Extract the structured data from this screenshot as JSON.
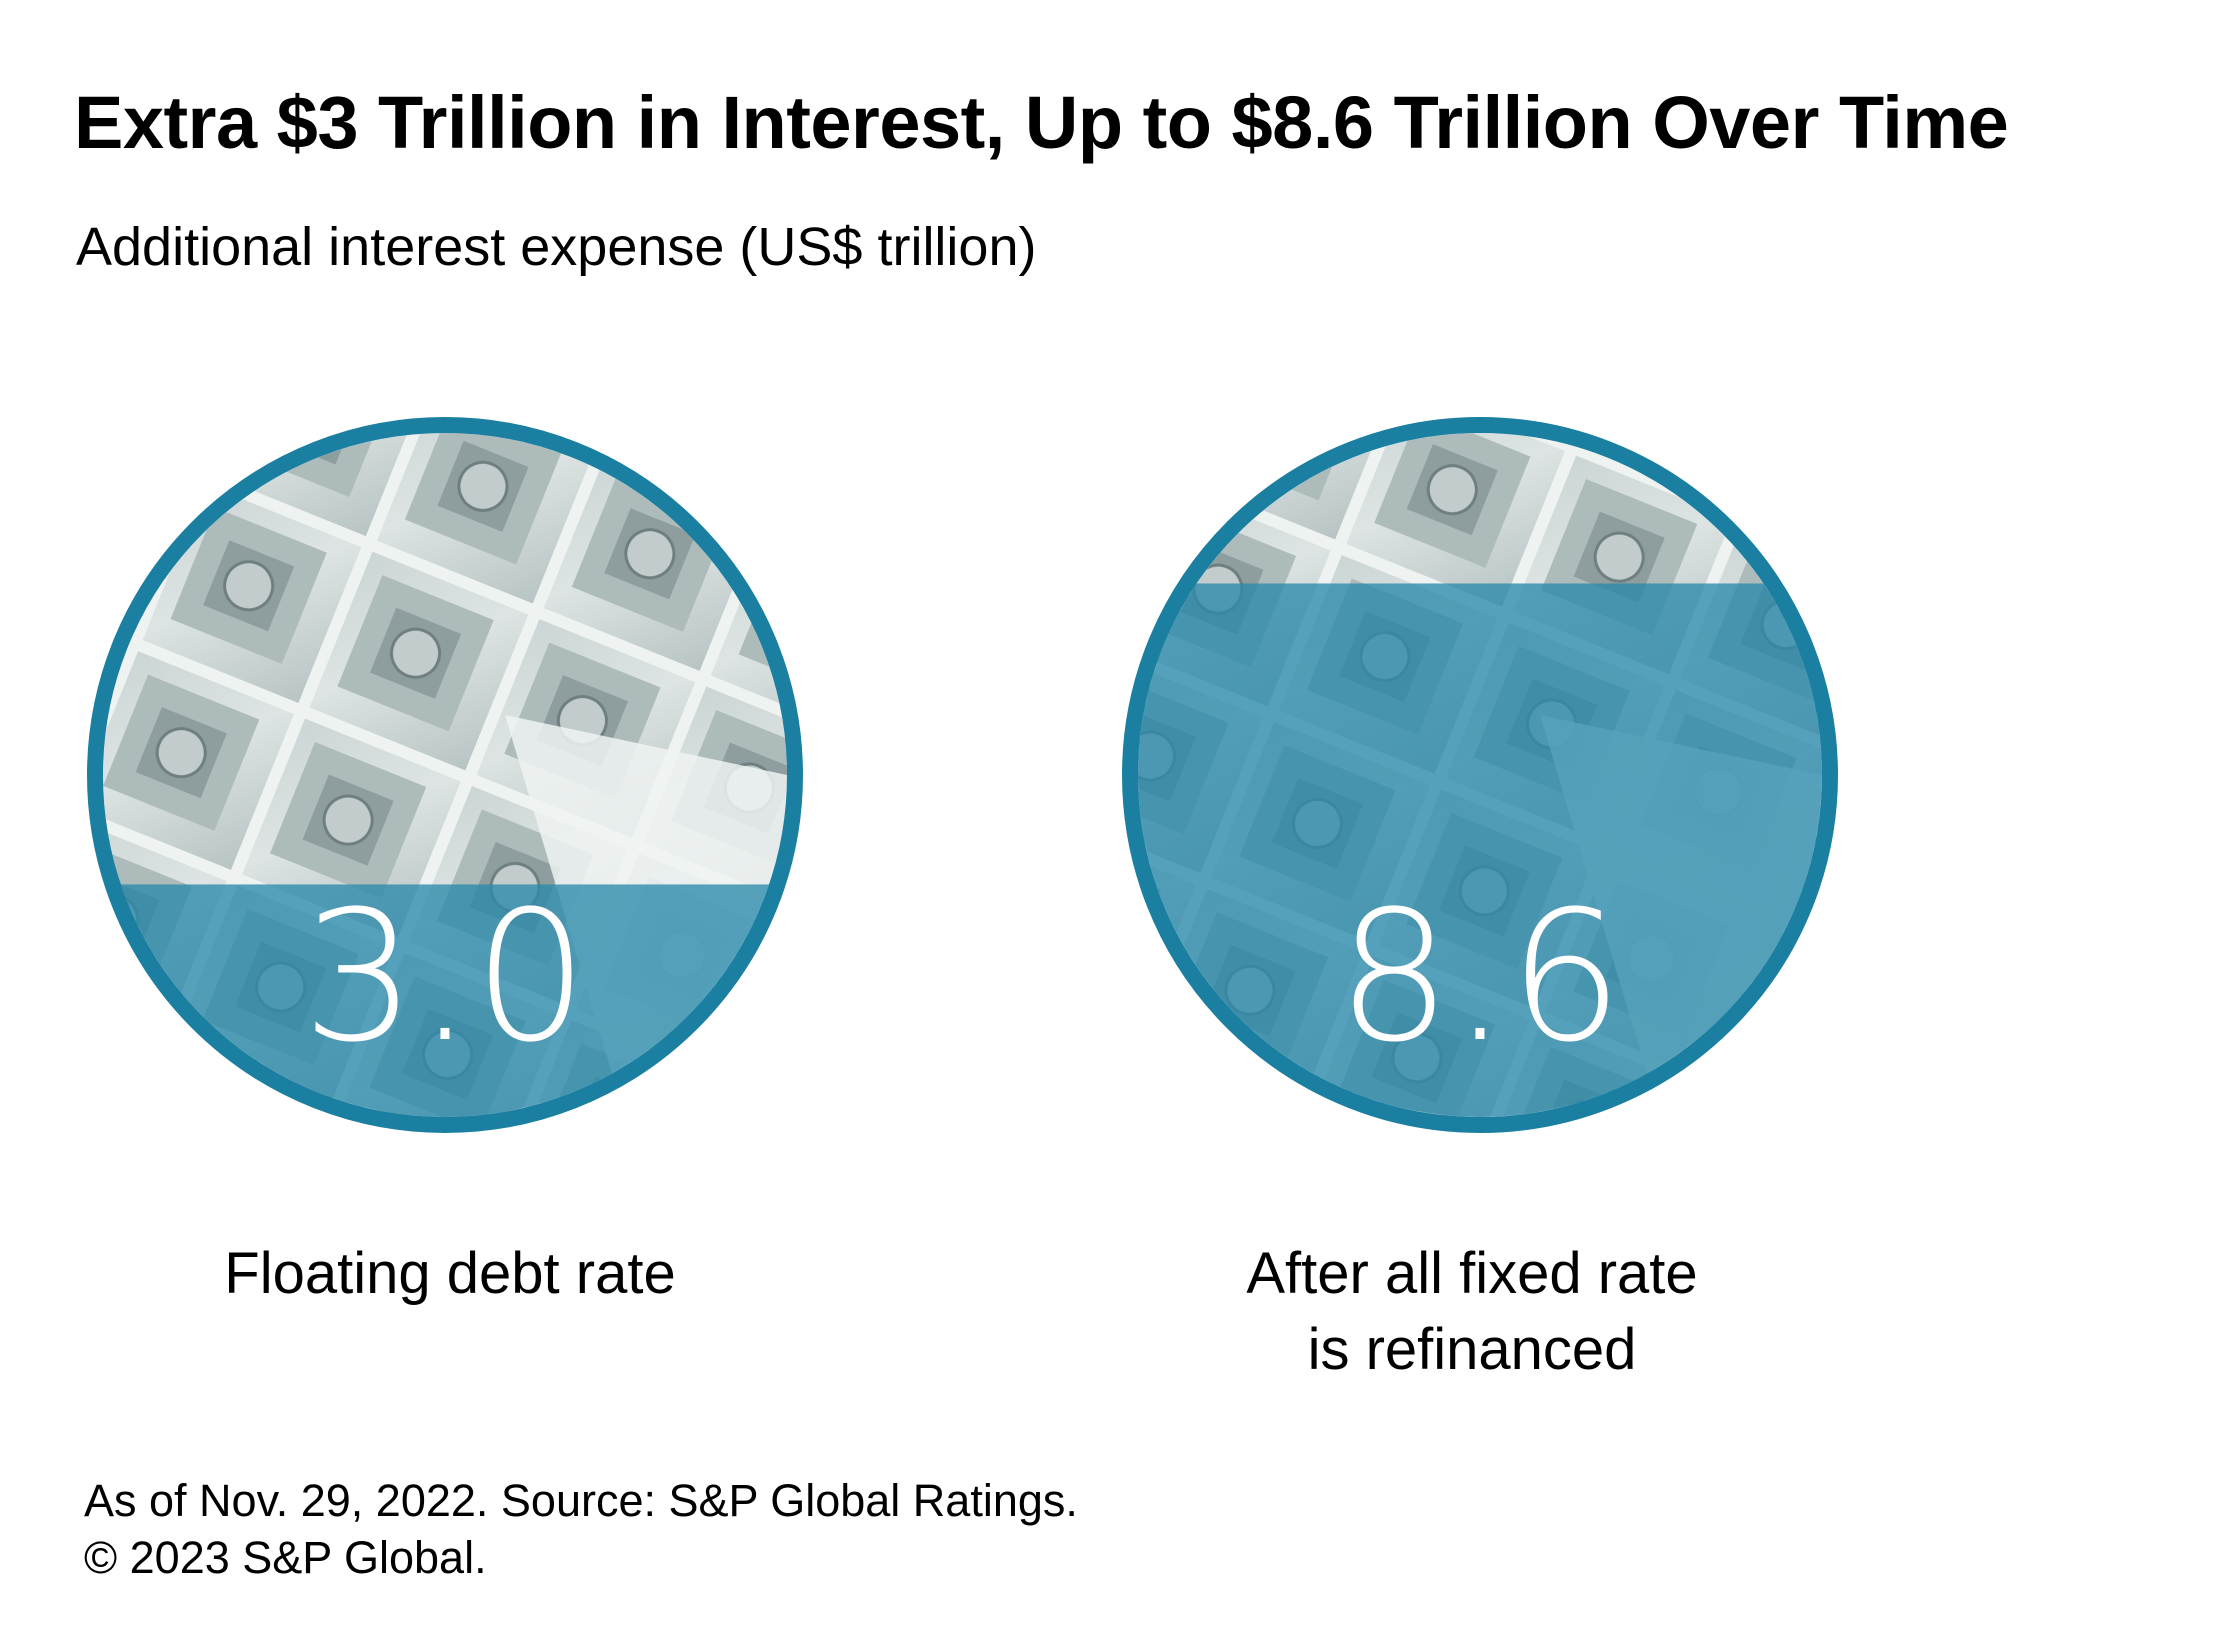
{
  "title": "Extra $3 Trillion in Interest, Up to $8.6 Trillion Over Time",
  "subtitle": "Additional interest expense (US$ trillion)",
  "colors": {
    "ring": "#1a7fa0",
    "fill": "#2a89ab",
    "text_on_fill": "#ffffff"
  },
  "chart_data": {
    "type": "bar",
    "subtype": "circle-fill",
    "categories": [
      "Floating debt rate",
      "After all fixed rate is refinanced"
    ],
    "values": [
      3.0,
      8.6
    ],
    "value_labels": [
      "3.0",
      "8.6"
    ],
    "fill_fraction": [
      0.34,
      0.78
    ],
    "title": "Extra $3 Trillion in Interest, Up to $8.6 Trillion Over Time",
    "ylabel": "Additional interest expense (US$ trillion)"
  },
  "labels": {
    "left": [
      "Floating debt rate"
    ],
    "right": [
      "After all fixed rate",
      "is refinanced"
    ]
  },
  "footer": {
    "line1": "As of Nov. 29, 2022. Source: S&P Global Ratings.",
    "line2": "© 2023 S&P Global."
  }
}
